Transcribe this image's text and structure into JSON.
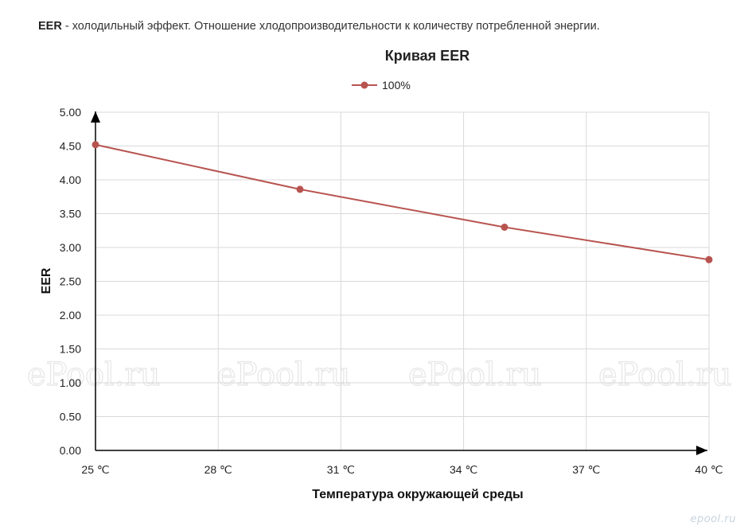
{
  "intro": {
    "term": "EER",
    "text": " - холодильный эффект. Отношение хлодопроизводительности к количеству потребленной энергии."
  },
  "watermark": {
    "text": "ePool.ru",
    "corner": "epool.ru"
  },
  "colors": {
    "series": "#b85450",
    "grid": "#d9d9d9",
    "axis": "#000000"
  },
  "chart_data": {
    "type": "line",
    "title": "Кривая EER",
    "xlabel": "Температура окружающей среды",
    "ylabel": "EER",
    "x_ticks": [
      "25 ℃",
      "28 ℃",
      "31 ℃",
      "34 ℃",
      "37 ℃",
      "40 ℃"
    ],
    "x_tick_values": [
      25,
      28,
      31,
      34,
      37,
      40
    ],
    "xlim": [
      25,
      40
    ],
    "ylim": [
      0,
      5
    ],
    "y_ticks": [
      "0.00",
      "0.50",
      "1.00",
      "1.50",
      "2.00",
      "2.50",
      "3.00",
      "3.50",
      "4.00",
      "4.50",
      "5.00"
    ],
    "grid": true,
    "legend_position": "top-center",
    "series": [
      {
        "name": "100%",
        "x": [
          25,
          30,
          35,
          40
        ],
        "y": [
          4.52,
          3.86,
          3.3,
          2.82
        ]
      }
    ]
  }
}
